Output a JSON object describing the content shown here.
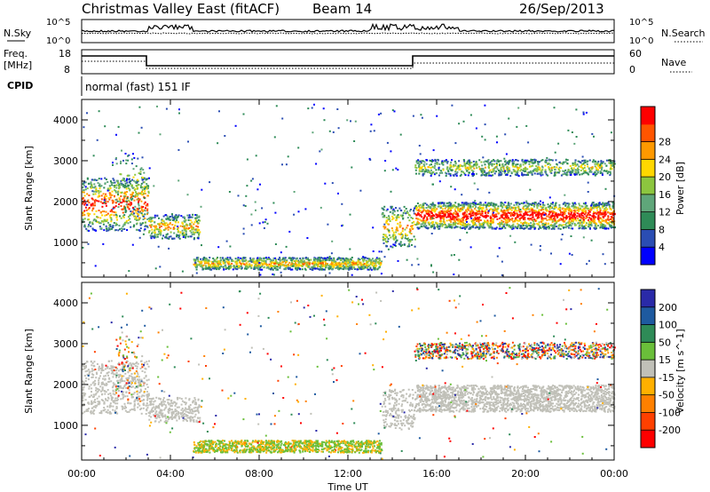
{
  "header": {
    "title": "Christmas Valley East (fitACF)",
    "beam": "Beam 14",
    "date": "26/Sep/2013"
  },
  "sky_panel": {
    "left_label": "N.Sky",
    "right_label": "N.Search",
    "left_ticks": [
      "10^5",
      "10^0"
    ],
    "right_ticks": [
      "10^5",
      "10^0"
    ]
  },
  "freq_panel": {
    "left_label_line1": "Freq.",
    "left_label_line2": "[MHz]",
    "right_label": "Nave",
    "left_ticks": [
      "18",
      "8"
    ],
    "right_ticks": [
      "60",
      "0"
    ]
  },
  "cpid": {
    "label": "CPID",
    "value": "normal (fast) 151 IF"
  },
  "colors": {
    "power_scale": [
      "#0000ff",
      "#2a4db3",
      "#2e8b57",
      "#5fa67a",
      "#8cc63f",
      "#ffd700",
      "#ff9900",
      "#ff5500",
      "#ff0000"
    ],
    "velocity_scale": [
      "#2a2aa8",
      "#1e5aa0",
      "#2e8b57",
      "#6abf3a",
      "#c0c0b8",
      "#ffb000",
      "#ff8000",
      "#ff4000",
      "#ff0000"
    ]
  },
  "chart_data": [
    {
      "type": "heatmap",
      "title": "Power",
      "xlabel": "",
      "ylabel": "Slant Range [km]",
      "x_ticks": [
        "00:00",
        "04:00",
        "08:00",
        "12:00",
        "16:00",
        "20:00",
        "00:00"
      ],
      "y_ticks": [
        1000,
        2000,
        3000,
        4000
      ],
      "ylim": [
        150,
        4500
      ],
      "xlim_hours": [
        0,
        24
      ],
      "colorbar": {
        "label": "Power [dB]",
        "ticks": [
          4,
          8,
          12,
          16,
          20,
          24,
          28
        ]
      }
    },
    {
      "type": "heatmap",
      "title": "Velocity",
      "xlabel": "Time UT",
      "ylabel": "Slant Range [km]",
      "x_ticks": [
        "00:00",
        "04:00",
        "08:00",
        "12:00",
        "16:00",
        "20:00",
        "00:00"
      ],
      "y_ticks": [
        1000,
        2000,
        3000,
        4000
      ],
      "ylim": [
        150,
        4500
      ],
      "xlim_hours": [
        0,
        24
      ],
      "colorbar": {
        "label": "Velocity [m s^-1]",
        "ticks": [
          200,
          100,
          50,
          15,
          -15,
          -50,
          -100,
          -200
        ]
      }
    }
  ]
}
